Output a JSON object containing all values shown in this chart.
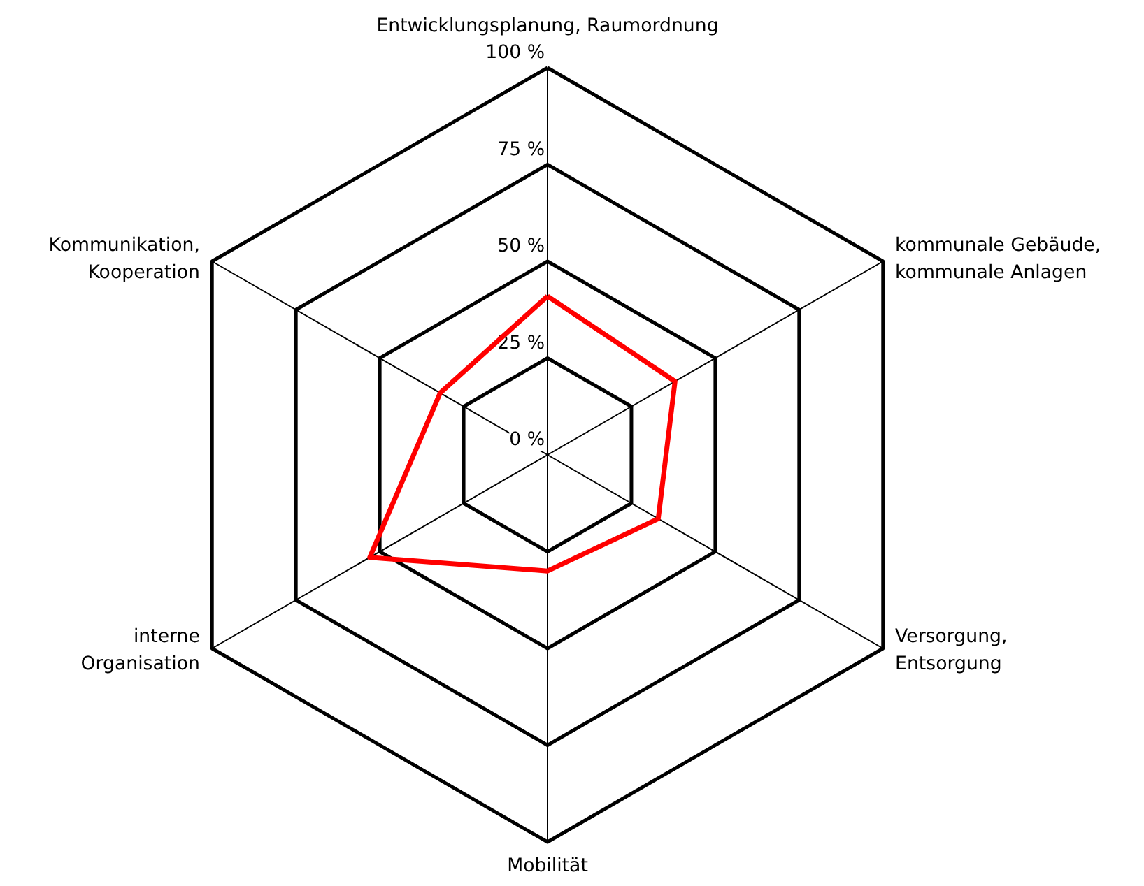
{
  "chart_data": {
    "type": "radar",
    "categories": [
      "Entwicklungsplanung, Raumordnung",
      "kommunale Gebäude,\nkommunale Anlagen",
      "Versorgung,\nEntsorgung",
      "Mobilität",
      "interne\nOrganisation",
      "Kommunikation,\nKooperation"
    ],
    "series": [
      {
        "color": "#ff0000",
        "values": [
          41,
          38,
          33,
          30,
          53,
          32
        ]
      }
    ],
    "ylim": [
      0,
      100
    ],
    "yticks": [
      {
        "value": 0,
        "label": "0 %"
      },
      {
        "value": 25,
        "label": "25 %"
      },
      {
        "value": 50,
        "label": "50 %"
      },
      {
        "value": 75,
        "label": "75 %"
      },
      {
        "value": 100,
        "label": "100 %"
      }
    ],
    "grid": true,
    "marker": "none",
    "line_style": "solid"
  }
}
